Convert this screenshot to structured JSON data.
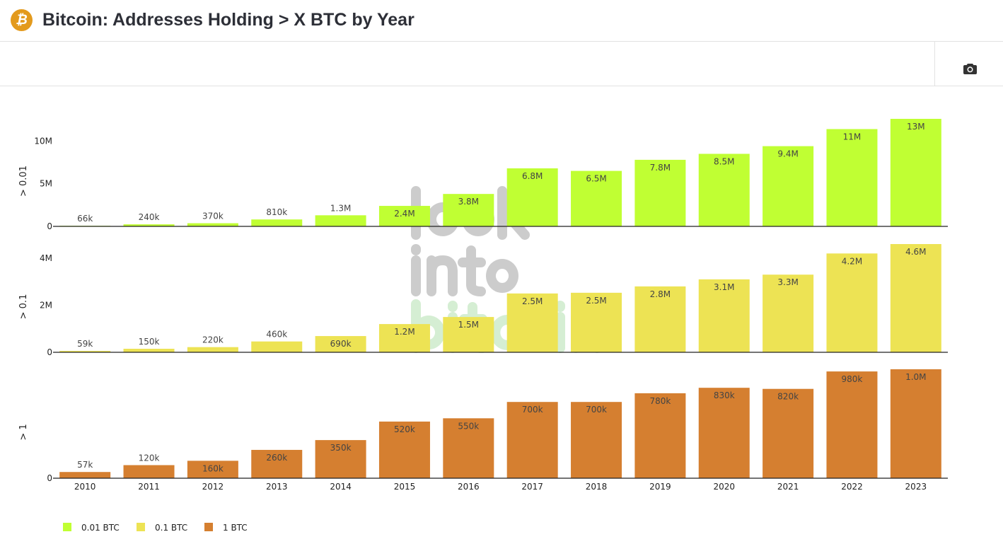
{
  "header": {
    "title": "Bitcoin: Addresses Holding > X BTC by Year",
    "logo_icon": "bitcoin-logo-icon"
  },
  "toolbar": {
    "camera_icon": "camera-icon"
  },
  "watermark": [
    "look",
    "into",
    "bitcoin"
  ],
  "chart_data": {
    "type": "bar",
    "categories": [
      "2010",
      "2011",
      "2012",
      "2013",
      "2014",
      "2015",
      "2016",
      "2017",
      "2018",
      "2019",
      "2020",
      "2021",
      "2022",
      "2023"
    ],
    "panels": [
      {
        "ylabel": "> 0.01",
        "yticks": [
          {
            "v": 0,
            "label": "0"
          },
          {
            "v": 5000000,
            "label": "5M"
          },
          {
            "v": 10000000,
            "label": "10M"
          }
        ],
        "ylim": [
          0,
          12600000
        ]
      },
      {
        "ylabel": "> 0.1",
        "yticks": [
          {
            "v": 0,
            "label": "0"
          },
          {
            "v": 2000000,
            "label": "2M"
          },
          {
            "v": 4000000,
            "label": "4M"
          }
        ],
        "ylim": [
          0,
          4600000
        ]
      },
      {
        "ylabel": "> 1",
        "yticks": [
          {
            "v": 0,
            "label": "0"
          }
        ],
        "ylim": [
          0,
          1000000
        ]
      }
    ],
    "series": [
      {
        "name": "0.01 BTC",
        "color": "#c0ff33",
        "values": [
          66000,
          240000,
          370000,
          810000,
          1300000,
          2400000,
          3800000,
          6800000,
          6500000,
          7800000,
          8500000,
          9400000,
          11400000,
          12600000
        ],
        "labels": [
          "66k",
          "240k",
          "370k",
          "810k",
          "1.3M",
          "2.4M",
          "3.8M",
          "6.8M",
          "6.5M",
          "7.8M",
          "8.5M",
          "9.4M",
          "11M",
          "13M"
        ]
      },
      {
        "name": "0.1 BTC",
        "color": "#ede354",
        "values": [
          59000,
          150000,
          220000,
          460000,
          690000,
          1200000,
          1500000,
          2500000,
          2530000,
          2800000,
          3100000,
          3300000,
          4200000,
          4600000
        ],
        "labels": [
          "59k",
          "150k",
          "220k",
          "460k",
          "690k",
          "1.2M",
          "1.5M",
          "2.5M",
          "2.5M",
          "2.8M",
          "3.1M",
          "3.3M",
          "4.2M",
          "4.6M"
        ]
      },
      {
        "name": "1 BTC",
        "color": "#d57f30",
        "values": [
          57000,
          120000,
          160000,
          260000,
          350000,
          520000,
          550000,
          700000,
          700000,
          780000,
          830000,
          820000,
          980000,
          1000000
        ],
        "labels": [
          "57k",
          "120k",
          "160k",
          "260k",
          "350k",
          "520k",
          "550k",
          "700k",
          "700k",
          "780k",
          "830k",
          "820k",
          "980k",
          "1.0M"
        ]
      }
    ],
    "legend": "bottom-left",
    "grid": false
  }
}
